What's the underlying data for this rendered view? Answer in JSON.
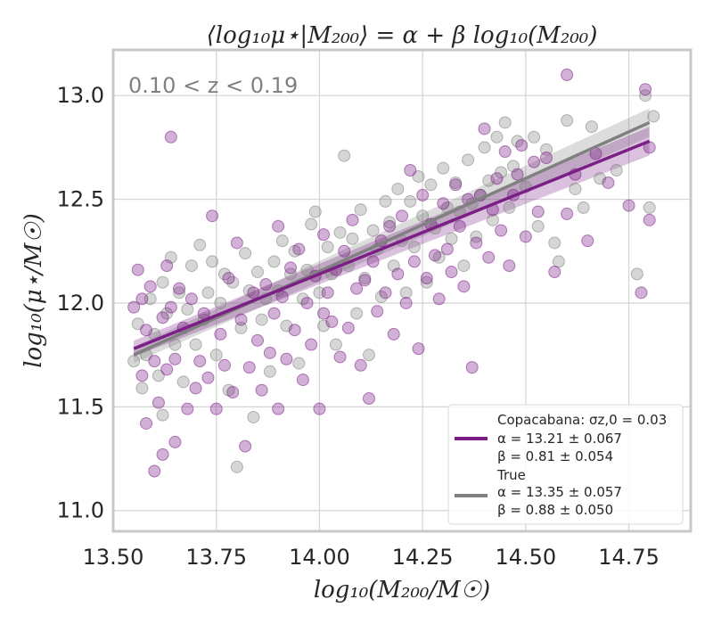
{
  "chart_data": {
    "type": "scatter",
    "title": "⟨log₁₀μ⋆|M₂₀₀⟩ = α + β log₁₀(M₂₀₀)",
    "annotation": "0.10 < z < 0.19",
    "xlabel": "log₁₀(M₂₀₀/M☉)",
    "ylabel": "log₁₀(μ⋆/M☉)",
    "xlim": [
      13.5,
      14.9
    ],
    "ylim": [
      10.9,
      13.22
    ],
    "xticks": [
      "13.50",
      "13.75",
      "14.00",
      "14.25",
      "14.50",
      "14.75"
    ],
    "yticks": [
      "11.0",
      "11.5",
      "12.0",
      "12.5",
      "13.0"
    ],
    "grid": true,
    "legend_position": "bottom-right",
    "colors": {
      "copacabana": "#7b1f86",
      "true": "#808080",
      "grid": "#d4d4d4",
      "frame": "#c8c8c8",
      "annotation": "#808080"
    },
    "series": [
      {
        "name": "Copacabana: σz,0 = 0.03",
        "alpha_text": "α = 13.21 ± 0.067",
        "beta_text": "β = 0.81 ± 0.054",
        "fit": {
          "x": [
            13.55,
            14.8
          ],
          "y": [
            11.78,
            12.78
          ]
        },
        "points": [
          [
            13.55,
            11.98
          ],
          [
            13.56,
            12.16
          ],
          [
            13.57,
            12.02
          ],
          [
            13.57,
            11.65
          ],
          [
            13.58,
            11.42
          ],
          [
            13.58,
            11.87
          ],
          [
            13.59,
            12.08
          ],
          [
            13.6,
            11.72
          ],
          [
            13.6,
            11.19
          ],
          [
            13.61,
            11.52
          ],
          [
            13.62,
            11.93
          ],
          [
            13.62,
            11.27
          ],
          [
            13.63,
            12.18
          ],
          [
            13.63,
            11.68
          ],
          [
            13.64,
            12.8
          ],
          [
            13.64,
            11.98
          ],
          [
            13.65,
            11.33
          ],
          [
            13.65,
            11.73
          ],
          [
            13.66,
            12.07
          ],
          [
            13.67,
            11.88
          ],
          [
            13.68,
            11.49
          ],
          [
            13.69,
            12.02
          ],
          [
            13.7,
            11.59
          ],
          [
            13.71,
            11.72
          ],
          [
            13.72,
            11.95
          ],
          [
            13.73,
            11.64
          ],
          [
            13.74,
            12.42
          ],
          [
            13.75,
            11.49
          ],
          [
            13.76,
            11.85
          ],
          [
            13.77,
            11.7
          ],
          [
            13.78,
            12.12
          ],
          [
            13.79,
            11.57
          ],
          [
            13.8,
            12.29
          ],
          [
            13.81,
            11.92
          ],
          [
            13.82,
            11.31
          ],
          [
            13.83,
            11.69
          ],
          [
            13.84,
            12.05
          ],
          [
            13.85,
            11.82
          ],
          [
            13.86,
            11.58
          ],
          [
            13.87,
            12.09
          ],
          [
            13.88,
            11.76
          ],
          [
            13.89,
            11.95
          ],
          [
            13.9,
            11.49
          ],
          [
            13.9,
            12.37
          ],
          [
            13.91,
            12.03
          ],
          [
            13.92,
            11.73
          ],
          [
            13.93,
            12.17
          ],
          [
            13.94,
            11.87
          ],
          [
            13.95,
            12.26
          ],
          [
            13.96,
            11.63
          ],
          [
            13.97,
            12.0
          ],
          [
            13.98,
            11.8
          ],
          [
            13.99,
            12.13
          ],
          [
            14.0,
            11.49
          ],
          [
            14.01,
            12.33
          ],
          [
            14.01,
            11.95
          ],
          [
            14.02,
            12.05
          ],
          [
            14.03,
            11.91
          ],
          [
            14.04,
            12.16
          ],
          [
            14.05,
            11.74
          ],
          [
            14.06,
            12.25
          ],
          [
            14.07,
            11.88
          ],
          [
            14.08,
            12.4
          ],
          [
            14.09,
            12.07
          ],
          [
            14.1,
            11.7
          ],
          [
            14.11,
            12.11
          ],
          [
            14.12,
            11.54
          ],
          [
            14.13,
            12.2
          ],
          [
            14.14,
            11.96
          ],
          [
            14.15,
            12.3
          ],
          [
            14.16,
            12.05
          ],
          [
            14.17,
            12.37
          ],
          [
            14.18,
            11.85
          ],
          [
            14.19,
            12.14
          ],
          [
            14.2,
            12.42
          ],
          [
            14.21,
            12.0
          ],
          [
            14.22,
            12.64
          ],
          [
            14.23,
            12.2
          ],
          [
            14.24,
            11.78
          ],
          [
            14.25,
            12.52
          ],
          [
            14.26,
            12.12
          ],
          [
            14.27,
            12.38
          ],
          [
            14.28,
            12.23
          ],
          [
            14.29,
            12.02
          ],
          [
            14.3,
            12.48
          ],
          [
            14.31,
            12.26
          ],
          [
            14.32,
            12.15
          ],
          [
            14.33,
            12.57
          ],
          [
            14.34,
            12.37
          ],
          [
            14.35,
            12.08
          ],
          [
            14.36,
            12.5
          ],
          [
            14.37,
            11.69
          ],
          [
            14.38,
            12.29
          ],
          [
            14.39,
            12.52
          ],
          [
            14.4,
            12.84
          ],
          [
            14.41,
            12.22
          ],
          [
            14.42,
            12.45
          ],
          [
            14.43,
            12.6
          ],
          [
            14.44,
            12.35
          ],
          [
            14.45,
            12.73
          ],
          [
            14.46,
            12.18
          ],
          [
            14.47,
            12.52
          ],
          [
            14.48,
            12.62
          ],
          [
            14.49,
            12.76
          ],
          [
            14.5,
            12.32
          ],
          [
            14.52,
            12.68
          ],
          [
            14.53,
            12.44
          ],
          [
            14.55,
            12.7
          ],
          [
            14.57,
            12.15
          ],
          [
            14.6,
            12.43
          ],
          [
            14.6,
            13.1
          ],
          [
            14.62,
            12.62
          ],
          [
            14.65,
            12.3
          ],
          [
            14.67,
            12.72
          ],
          [
            14.7,
            12.58
          ],
          [
            14.75,
            12.47
          ],
          [
            14.78,
            12.05
          ],
          [
            14.79,
            13.03
          ],
          [
            14.8,
            12.4
          ],
          [
            14.8,
            12.75
          ]
        ]
      },
      {
        "name": "True",
        "alpha_text": "α = 13.35 ± 0.057",
        "beta_text": "β = 0.88 ± 0.050",
        "fit": {
          "x": [
            13.55,
            14.8
          ],
          "y": [
            11.75,
            12.87
          ]
        },
        "points": [
          [
            13.55,
            11.72
          ],
          [
            13.56,
            11.9
          ],
          [
            13.57,
            11.59
          ],
          [
            13.58,
            11.75
          ],
          [
            13.59,
            12.02
          ],
          [
            13.6,
            11.85
          ],
          [
            13.61,
            11.65
          ],
          [
            13.62,
            12.1
          ],
          [
            13.62,
            11.46
          ],
          [
            13.63,
            11.95
          ],
          [
            13.64,
            12.22
          ],
          [
            13.65,
            11.8
          ],
          [
            13.66,
            12.05
          ],
          [
            13.67,
            11.62
          ],
          [
            13.68,
            11.97
          ],
          [
            13.69,
            12.18
          ],
          [
            13.7,
            11.8
          ],
          [
            13.71,
            12.28
          ],
          [
            13.72,
            11.92
          ],
          [
            13.73,
            12.05
          ],
          [
            13.74,
            12.2
          ],
          [
            13.75,
            11.75
          ],
          [
            13.76,
            12.0
          ],
          [
            13.77,
            12.14
          ],
          [
            13.78,
            11.58
          ],
          [
            13.79,
            12.1
          ],
          [
            13.8,
            11.21
          ],
          [
            13.81,
            11.88
          ],
          [
            13.82,
            12.24
          ],
          [
            13.83,
            12.06
          ],
          [
            13.84,
            11.45
          ],
          [
            13.85,
            12.15
          ],
          [
            13.86,
            11.92
          ],
          [
            13.87,
            12.02
          ],
          [
            13.88,
            11.67
          ],
          [
            13.89,
            12.2
          ],
          [
            13.9,
            12.06
          ],
          [
            13.91,
            12.3
          ],
          [
            13.92,
            11.89
          ],
          [
            13.93,
            12.14
          ],
          [
            13.94,
            12.25
          ],
          [
            13.95,
            11.71
          ],
          [
            13.96,
            12.02
          ],
          [
            13.97,
            12.16
          ],
          [
            13.98,
            12.38
          ],
          [
            13.99,
            12.44
          ],
          [
            14.0,
            12.05
          ],
          [
            14.01,
            11.89
          ],
          [
            14.02,
            12.27
          ],
          [
            14.03,
            12.14
          ],
          [
            14.04,
            11.8
          ],
          [
            14.05,
            12.34
          ],
          [
            14.06,
            12.71
          ],
          [
            14.07,
            12.18
          ],
          [
            14.08,
            12.31
          ],
          [
            14.09,
            11.95
          ],
          [
            14.1,
            12.45
          ],
          [
            14.11,
            12.12
          ],
          [
            14.12,
            11.75
          ],
          [
            14.13,
            12.35
          ],
          [
            14.14,
            12.26
          ],
          [
            14.15,
            12.03
          ],
          [
            14.16,
            12.49
          ],
          [
            14.17,
            12.39
          ],
          [
            14.18,
            12.18
          ],
          [
            14.19,
            12.55
          ],
          [
            14.2,
            12.3
          ],
          [
            14.21,
            12.05
          ],
          [
            14.22,
            12.49
          ],
          [
            14.23,
            12.27
          ],
          [
            14.24,
            12.61
          ],
          [
            14.25,
            12.42
          ],
          [
            14.26,
            12.1
          ],
          [
            14.27,
            12.57
          ],
          [
            14.28,
            12.36
          ],
          [
            14.29,
            12.22
          ],
          [
            14.3,
            12.65
          ],
          [
            14.31,
            12.46
          ],
          [
            14.32,
            12.31
          ],
          [
            14.33,
            12.58
          ],
          [
            14.34,
            12.44
          ],
          [
            14.35,
            12.18
          ],
          [
            14.36,
            12.69
          ],
          [
            14.37,
            12.48
          ],
          [
            14.38,
            12.32
          ],
          [
            14.39,
            12.52
          ],
          [
            14.4,
            12.75
          ],
          [
            14.41,
            12.59
          ],
          [
            14.42,
            12.4
          ],
          [
            14.43,
            12.8
          ],
          [
            14.44,
            12.63
          ],
          [
            14.45,
            12.87
          ],
          [
            14.46,
            12.46
          ],
          [
            14.47,
            12.66
          ],
          [
            14.48,
            12.78
          ],
          [
            14.5,
            12.56
          ],
          [
            14.52,
            12.8
          ],
          [
            14.53,
            12.37
          ],
          [
            14.55,
            12.74
          ],
          [
            14.57,
            12.29
          ],
          [
            14.58,
            12.2
          ],
          [
            14.6,
            12.88
          ],
          [
            14.62,
            12.55
          ],
          [
            14.64,
            12.46
          ],
          [
            14.66,
            12.85
          ],
          [
            14.68,
            12.6
          ],
          [
            14.72,
            12.64
          ],
          [
            14.77,
            12.14
          ],
          [
            14.79,
            13.0
          ],
          [
            14.8,
            12.46
          ],
          [
            14.81,
            12.9
          ]
        ]
      }
    ]
  }
}
